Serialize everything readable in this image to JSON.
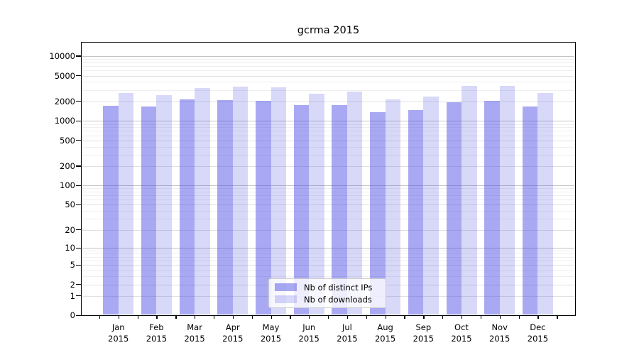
{
  "title": "gcrma 2015",
  "chart_data": {
    "type": "bar",
    "title": "gcrma 2015",
    "categories": [
      "Jan",
      "Feb",
      "Mar",
      "Apr",
      "May",
      "Jun",
      "Jul",
      "Aug",
      "Sep",
      "Oct",
      "Nov",
      "Dec"
    ],
    "year_label": "2015",
    "series": [
      {
        "name": "Nb of distinct IPs",
        "color": "rgba(72,72,229,0.47)",
        "values": [
          1712,
          1668,
          2175,
          2092,
          2060,
          1745,
          1772,
          1378,
          1455,
          1952,
          2058,
          1670
        ]
      },
      {
        "name": "Nb of downloads",
        "color": "rgba(72,72,229,0.21)",
        "values": [
          2701,
          2486,
          3198,
          3412,
          3329,
          2655,
          2815,
          2148,
          2391,
          3470,
          3468,
          2702
        ]
      }
    ],
    "y_ticks": [
      0,
      1,
      2,
      5,
      10,
      20,
      50,
      100,
      200,
      500,
      1000,
      2000,
      5000,
      10000
    ],
    "y_scale": "log1p",
    "ylim": [
      0,
      16000
    ],
    "xlabel": "",
    "ylabel": "",
    "grid": true,
    "legend_position": "lower-center",
    "colors": {
      "distinct_ips_rendered": "#a9a9f3",
      "downloads_rendered": "#d9d9f7",
      "major_gridline": "#c3c3c3",
      "labeled_gridline": "#e1e1e1",
      "minor_gridline": "#efefef",
      "axis": "#000000"
    }
  }
}
